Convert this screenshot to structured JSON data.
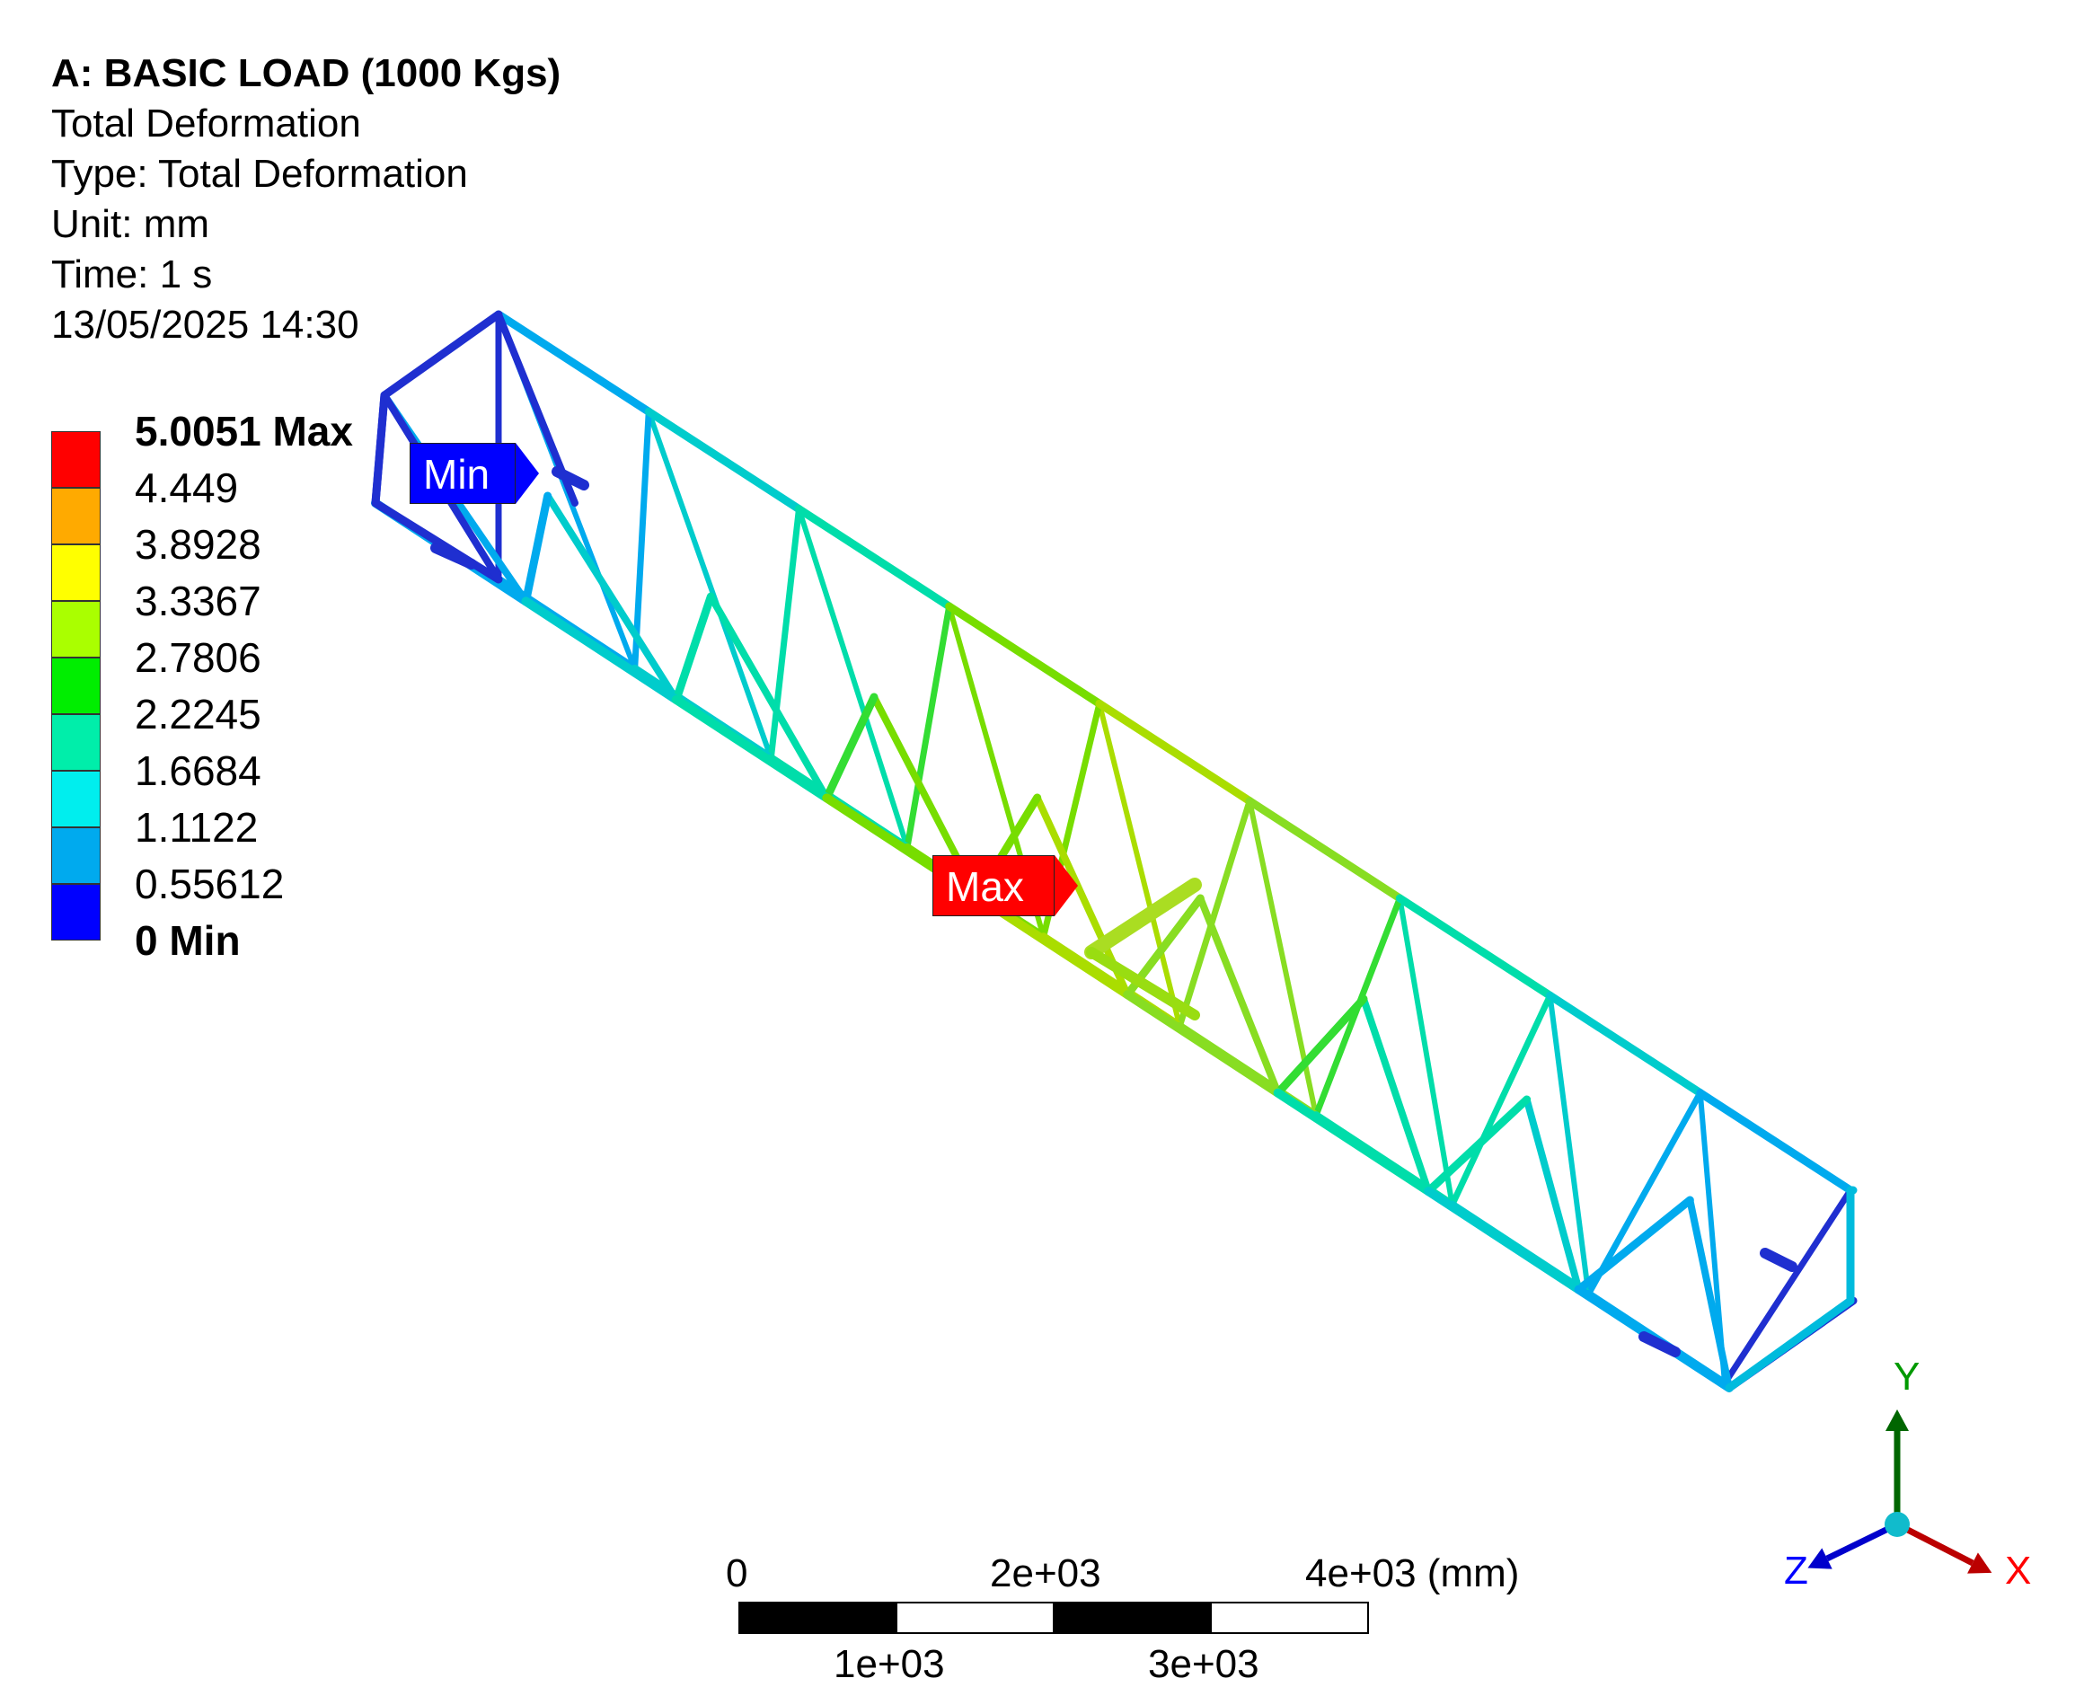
{
  "header": {
    "title": "A: BASIC LOAD (1000 Kgs)",
    "result_name": "Total Deformation",
    "type": "Type: Total Deformation",
    "unit": "Unit: mm",
    "time": "Time: 1 s",
    "timestamp": "13/05/2025 14:30"
  },
  "legend": {
    "levels": [
      {
        "label": "5.0051 Max",
        "bold": true
      },
      {
        "label": "4.449",
        "bold": false
      },
      {
        "label": "3.8928",
        "bold": false
      },
      {
        "label": "3.3367",
        "bold": false
      },
      {
        "label": "2.7806",
        "bold": false
      },
      {
        "label": "2.2245",
        "bold": false
      },
      {
        "label": "1.6684",
        "bold": false
      },
      {
        "label": "1.1122",
        "bold": false
      },
      {
        "label": "0.55612",
        "bold": false
      },
      {
        "label": "0 Min",
        "bold": true
      }
    ],
    "colors": [
      "#ff0000",
      "#ffaa00",
      "#ffff00",
      "#aaff00",
      "#00ee00",
      "#00eeaa",
      "#00eeee",
      "#00aaee",
      "#0000ff"
    ]
  },
  "probes": {
    "min_label": "Min",
    "max_label": "Max",
    "min_color": "#0000ff",
    "max_color": "#ff0000"
  },
  "scale_bar": {
    "top_labels": [
      "0",
      "2e+03",
      "4e+03 (mm)"
    ],
    "bottom_labels": [
      "1e+03",
      "3e+03"
    ]
  },
  "triad": {
    "x": "X",
    "y": "Y",
    "z": "Z",
    "x_color": "#ff0000",
    "y_color": "#009900",
    "z_color": "#0000ff"
  }
}
